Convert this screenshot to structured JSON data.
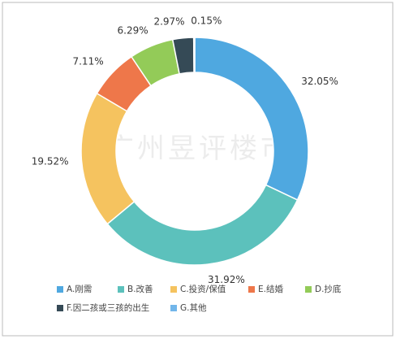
{
  "chart_data": {
    "type": "donut",
    "watermark": "广州昱评楼市",
    "categories": [
      "A.刚需",
      "B.改善",
      "C.投资/保值",
      "E.结婚",
      "D.抄底",
      "F.因二孩或三孩的出生",
      "G.其他"
    ],
    "values": [
      32.05,
      31.92,
      19.52,
      7.11,
      6.29,
      2.97,
      0.15
    ],
    "value_labels": [
      "32.05%",
      "31.92%",
      "19.52%",
      "7.11%",
      "6.29%",
      "2.97%",
      "0.15%"
    ],
    "colors": [
      "#4fa8e0",
      "#5cc1bc",
      "#f5c35f",
      "#ee774a",
      "#93cb58",
      "#354a56",
      "#72b6ea"
    ]
  }
}
